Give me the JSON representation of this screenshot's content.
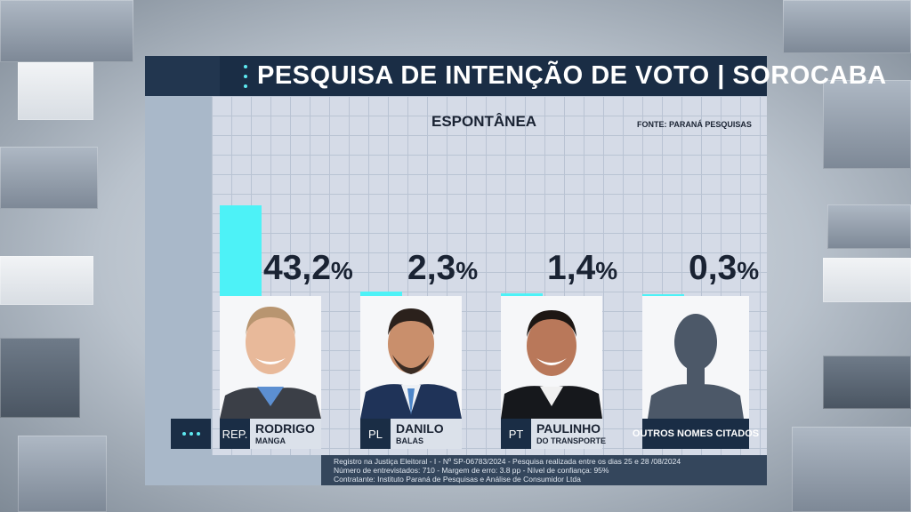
{
  "title": "PESQUISA DE INTENÇÃO DE VOTO | SOROCABA",
  "subtitle": "ESPONTÂNEA",
  "source": "FONTE: PARANÁ PESQUISAS",
  "colors": {
    "bar": "#4df2f7",
    "dark": "#1a2d45",
    "grid_bg": "#d5dbe7"
  },
  "candidates": [
    {
      "party": "REP.",
      "name": "RODRIGO",
      "sub": "MANGA",
      "value_label": "43,2",
      "unit": "%"
    },
    {
      "party": "PL",
      "name": "DANILO",
      "sub": "BALAS",
      "value_label": "2,3",
      "unit": "%"
    },
    {
      "party": "PT",
      "name": "PAULINHO",
      "sub": "DO TRANSPORTE",
      "value_label": "1,4",
      "unit": "%"
    },
    {
      "party": "",
      "name": "OUTROS NOMES CITADOS",
      "sub": "",
      "value_label": "0,3",
      "unit": "%"
    }
  ],
  "chart_data": {
    "type": "bar",
    "title": "PESQUISA DE INTENÇÃO DE VOTO | SOROCABA",
    "subtitle": "ESPONTÂNEA",
    "categories": [
      "RODRIGO MANGA",
      "DANILO BALAS",
      "PAULINHO DO TRANSPORTE",
      "OUTROS NOMES CITADOS"
    ],
    "values": [
      43.2,
      2.3,
      1.4,
      0.3
    ],
    "unit": "%"
  },
  "footer": {
    "line1": "Registro na Justiça Eleitoral - I - Nº SP-06783/2024  - Pesquisa realizada entre os dias 25 e 28 /08/2024",
    "line2": "Número de entrevistados: 710 - Margem de erro: 3.8 pp - Nível de confiança: 95%",
    "line3": "Contratante: Instituto Paraná de Pesquisas e Análise de Consumidor Ltda"
  }
}
